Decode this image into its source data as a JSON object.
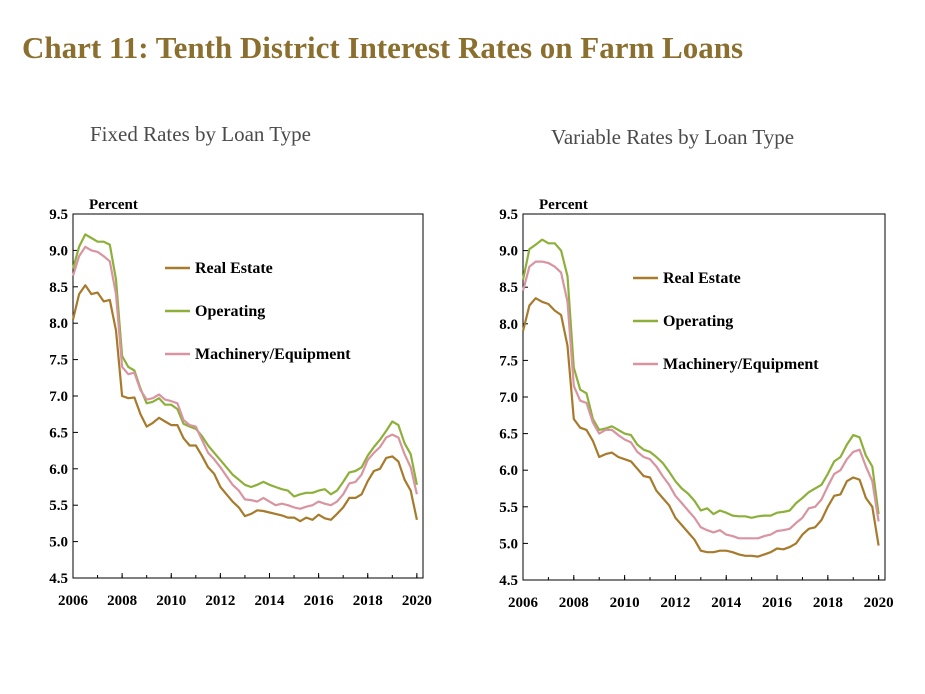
{
  "header": {
    "title": "Chart 11: Tenth District Interest Rates on Farm Loans"
  },
  "colors": {
    "real_estate": "#A77A2C",
    "operating": "#8DB03A",
    "machinery": "#D994A1",
    "title": "#8B6F2E"
  },
  "chart_data": [
    {
      "type": "line",
      "title": "Fixed Rates by Loan Type",
      "ylabel": "Percent",
      "xlim": [
        2006,
        2020.25
      ],
      "ylim": [
        4.5,
        9.5
      ],
      "yticks": [
        "4.5",
        "5.0",
        "5.5",
        "6.0",
        "6.5",
        "7.0",
        "7.5",
        "8.0",
        "8.5",
        "9.0",
        "9.5"
      ],
      "xticks": [
        "2006",
        "2008",
        "2010",
        "2012",
        "2014",
        "2016",
        "2018",
        "2020"
      ],
      "legend_position": "upper-right",
      "series": [
        {
          "name": "Real Estate",
          "color": "#A77A2C",
          "x": [
            2006,
            2006.25,
            2006.5,
            2006.75,
            2007,
            2007.25,
            2007.5,
            2007.75,
            2008,
            2008.25,
            2008.5,
            2008.75,
            2009,
            2009.25,
            2009.5,
            2009.75,
            2010,
            2010.25,
            2010.5,
            2010.75,
            2011,
            2011.25,
            2011.5,
            2011.75,
            2012,
            2012.25,
            2012.5,
            2012.75,
            2013,
            2013.25,
            2013.5,
            2013.75,
            2014,
            2014.25,
            2014.5,
            2014.75,
            2015,
            2015.25,
            2015.5,
            2015.75,
            2016,
            2016.25,
            2016.5,
            2016.75,
            2017,
            2017.25,
            2017.5,
            2017.75,
            2018,
            2018.25,
            2018.5,
            2018.75,
            2019,
            2019.25,
            2019.5,
            2019.75,
            2020
          ],
          "values": [
            8.05,
            8.4,
            8.52,
            8.4,
            8.42,
            8.3,
            8.32,
            7.9,
            7.0,
            6.97,
            6.98,
            6.75,
            6.58,
            6.63,
            6.7,
            6.65,
            6.6,
            6.6,
            6.42,
            6.32,
            6.32,
            6.18,
            6.02,
            5.93,
            5.75,
            5.65,
            5.55,
            5.47,
            5.35,
            5.38,
            5.43,
            5.42,
            5.4,
            5.38,
            5.36,
            5.33,
            5.33,
            5.28,
            5.33,
            5.3,
            5.37,
            5.32,
            5.3,
            5.38,
            5.47,
            5.6,
            5.6,
            5.65,
            5.83,
            5.97,
            6.0,
            6.15,
            6.17,
            6.1,
            5.85,
            5.7,
            5.3
          ]
        },
        {
          "name": "Operating",
          "color": "#8DB03A",
          "x": [
            2006,
            2006.25,
            2006.5,
            2006.75,
            2007,
            2007.25,
            2007.5,
            2007.75,
            2008,
            2008.25,
            2008.5,
            2008.75,
            2009,
            2009.25,
            2009.5,
            2009.75,
            2010,
            2010.25,
            2010.5,
            2010.75,
            2011,
            2011.25,
            2011.5,
            2011.75,
            2012,
            2012.25,
            2012.5,
            2012.75,
            2013,
            2013.25,
            2013.5,
            2013.75,
            2014,
            2014.25,
            2014.5,
            2014.75,
            2015,
            2015.25,
            2015.5,
            2015.75,
            2016,
            2016.25,
            2016.5,
            2016.75,
            2017,
            2017.25,
            2017.5,
            2017.75,
            2018,
            2018.25,
            2018.5,
            2018.75,
            2019,
            2019.25,
            2019.5,
            2019.75,
            2020
          ],
          "values": [
            8.75,
            9.05,
            9.22,
            9.17,
            9.12,
            9.12,
            9.08,
            8.6,
            7.55,
            7.4,
            7.35,
            7.1,
            6.9,
            6.92,
            6.97,
            6.88,
            6.88,
            6.82,
            6.62,
            6.58,
            6.55,
            6.45,
            6.32,
            6.22,
            6.12,
            6.02,
            5.92,
            5.85,
            5.78,
            5.75,
            5.78,
            5.82,
            5.78,
            5.75,
            5.72,
            5.7,
            5.62,
            5.65,
            5.67,
            5.67,
            5.7,
            5.72,
            5.65,
            5.7,
            5.82,
            5.95,
            5.97,
            6.02,
            6.18,
            6.3,
            6.4,
            6.52,
            6.65,
            6.6,
            6.35,
            6.2,
            5.78
          ]
        },
        {
          "name": "Machinery/Equipment",
          "color": "#D994A1",
          "x": [
            2006,
            2006.25,
            2006.5,
            2006.75,
            2007,
            2007.25,
            2007.5,
            2007.75,
            2008,
            2008.25,
            2008.5,
            2008.75,
            2009,
            2009.25,
            2009.5,
            2009.75,
            2010,
            2010.25,
            2010.5,
            2010.75,
            2011,
            2011.25,
            2011.5,
            2011.75,
            2012,
            2012.25,
            2012.5,
            2012.75,
            2013,
            2013.25,
            2013.5,
            2013.75,
            2014,
            2014.25,
            2014.5,
            2014.75,
            2015,
            2015.25,
            2015.5,
            2015.75,
            2016,
            2016.25,
            2016.5,
            2016.75,
            2017,
            2017.25,
            2017.5,
            2017.75,
            2018,
            2018.25,
            2018.5,
            2018.75,
            2019,
            2019.25,
            2019.5,
            2019.75,
            2020
          ],
          "values": [
            8.65,
            8.92,
            9.05,
            9.0,
            8.98,
            8.92,
            8.85,
            8.4,
            7.4,
            7.3,
            7.32,
            7.08,
            6.95,
            6.97,
            7.02,
            6.95,
            6.93,
            6.9,
            6.67,
            6.6,
            6.58,
            6.4,
            6.22,
            6.13,
            6.02,
            5.9,
            5.78,
            5.7,
            5.58,
            5.57,
            5.55,
            5.6,
            5.55,
            5.5,
            5.52,
            5.5,
            5.47,
            5.45,
            5.48,
            5.5,
            5.55,
            5.52,
            5.5,
            5.55,
            5.65,
            5.8,
            5.82,
            5.92,
            6.12,
            6.22,
            6.3,
            6.43,
            6.47,
            6.43,
            6.2,
            6.02,
            5.65
          ]
        }
      ]
    },
    {
      "type": "line",
      "title": "Variable Rates by Loan Type",
      "ylabel": "Percent",
      "xlim": [
        2006,
        2020.25
      ],
      "ylim": [
        4.5,
        9.5
      ],
      "yticks": [
        "4.5",
        "5.0",
        "5.5",
        "6.0",
        "6.5",
        "7.0",
        "7.5",
        "8.0",
        "8.5",
        "9.0",
        "9.5"
      ],
      "xticks": [
        "2006",
        "2008",
        "2010",
        "2012",
        "2014",
        "2016",
        "2018",
        "2020"
      ],
      "legend_position": "upper-right",
      "series": [
        {
          "name": "Real Estate",
          "color": "#A77A2C",
          "x": [
            2006,
            2006.25,
            2006.5,
            2006.75,
            2007,
            2007.25,
            2007.5,
            2007.75,
            2008,
            2008.25,
            2008.5,
            2008.75,
            2009,
            2009.25,
            2009.5,
            2009.75,
            2010,
            2010.25,
            2010.5,
            2010.75,
            2011,
            2011.25,
            2011.5,
            2011.75,
            2012,
            2012.25,
            2012.5,
            2012.75,
            2013,
            2013.25,
            2013.5,
            2013.75,
            2014,
            2014.25,
            2014.5,
            2014.75,
            2015,
            2015.25,
            2015.5,
            2015.75,
            2016,
            2016.25,
            2016.5,
            2016.75,
            2017,
            2017.25,
            2017.5,
            2017.75,
            2018,
            2018.25,
            2018.5,
            2018.75,
            2019,
            2019.25,
            2019.5,
            2019.75,
            2020
          ],
          "values": [
            7.9,
            8.25,
            8.35,
            8.3,
            8.27,
            8.18,
            8.12,
            7.7,
            6.7,
            6.58,
            6.55,
            6.4,
            6.18,
            6.22,
            6.24,
            6.18,
            6.15,
            6.12,
            6.02,
            5.92,
            5.9,
            5.72,
            5.62,
            5.52,
            5.35,
            5.25,
            5.15,
            5.05,
            4.9,
            4.88,
            4.88,
            4.9,
            4.9,
            4.88,
            4.85,
            4.83,
            4.83,
            4.82,
            4.85,
            4.88,
            4.93,
            4.92,
            4.95,
            5.0,
            5.12,
            5.2,
            5.22,
            5.32,
            5.5,
            5.65,
            5.67,
            5.85,
            5.9,
            5.87,
            5.62,
            5.5,
            4.97
          ]
        },
        {
          "name": "Operating",
          "color": "#8DB03A",
          "x": [
            2006,
            2006.25,
            2006.5,
            2006.75,
            2007,
            2007.25,
            2007.5,
            2007.75,
            2008,
            2008.25,
            2008.5,
            2008.75,
            2009,
            2009.25,
            2009.5,
            2009.75,
            2010,
            2010.25,
            2010.5,
            2010.75,
            2011,
            2011.25,
            2011.5,
            2011.75,
            2012,
            2012.25,
            2012.5,
            2012.75,
            2013,
            2013.25,
            2013.5,
            2013.75,
            2014,
            2014.25,
            2014.5,
            2014.75,
            2015,
            2015.25,
            2015.5,
            2015.75,
            2016,
            2016.25,
            2016.5,
            2016.75,
            2017,
            2017.25,
            2017.5,
            2017.75,
            2018,
            2018.25,
            2018.5,
            2018.75,
            2019,
            2019.25,
            2019.5,
            2019.75,
            2020
          ],
          "values": [
            8.6,
            9.02,
            9.08,
            9.15,
            9.1,
            9.1,
            9.0,
            8.65,
            7.4,
            7.1,
            7.05,
            6.7,
            6.55,
            6.57,
            6.6,
            6.55,
            6.5,
            6.48,
            6.35,
            6.28,
            6.25,
            6.18,
            6.1,
            5.98,
            5.85,
            5.75,
            5.68,
            5.58,
            5.45,
            5.48,
            5.4,
            5.45,
            5.42,
            5.38,
            5.37,
            5.37,
            5.35,
            5.37,
            5.38,
            5.38,
            5.42,
            5.43,
            5.45,
            5.55,
            5.62,
            5.7,
            5.75,
            5.8,
            5.95,
            6.12,
            6.18,
            6.35,
            6.48,
            6.45,
            6.2,
            6.05,
            5.4
          ]
        },
        {
          "name": "Machinery/Equipment",
          "color": "#D994A1",
          "x": [
            2006,
            2006.25,
            2006.5,
            2006.75,
            2007,
            2007.25,
            2007.5,
            2007.75,
            2008,
            2008.25,
            2008.5,
            2008.75,
            2009,
            2009.25,
            2009.5,
            2009.75,
            2010,
            2010.25,
            2010.5,
            2010.75,
            2011,
            2011.25,
            2011.5,
            2011.75,
            2012,
            2012.25,
            2012.5,
            2012.75,
            2013,
            2013.25,
            2013.5,
            2013.75,
            2014,
            2014.25,
            2014.5,
            2014.75,
            2015,
            2015.25,
            2015.5,
            2015.75,
            2016,
            2016.25,
            2016.5,
            2016.75,
            2017,
            2017.25,
            2017.5,
            2017.75,
            2018,
            2018.25,
            2018.5,
            2018.75,
            2019,
            2019.25,
            2019.5,
            2019.75,
            2020
          ],
          "values": [
            8.45,
            8.78,
            8.85,
            8.85,
            8.83,
            8.78,
            8.7,
            8.3,
            7.15,
            6.95,
            6.92,
            6.65,
            6.5,
            6.55,
            6.55,
            6.48,
            6.42,
            6.38,
            6.25,
            6.18,
            6.15,
            6.05,
            5.92,
            5.8,
            5.65,
            5.55,
            5.45,
            5.35,
            5.22,
            5.18,
            5.15,
            5.18,
            5.12,
            5.1,
            5.07,
            5.07,
            5.07,
            5.07,
            5.1,
            5.12,
            5.17,
            5.18,
            5.2,
            5.28,
            5.35,
            5.48,
            5.5,
            5.6,
            5.78,
            5.95,
            6.0,
            6.15,
            6.25,
            6.28,
            6.05,
            5.85,
            5.3
          ]
        }
      ]
    }
  ]
}
